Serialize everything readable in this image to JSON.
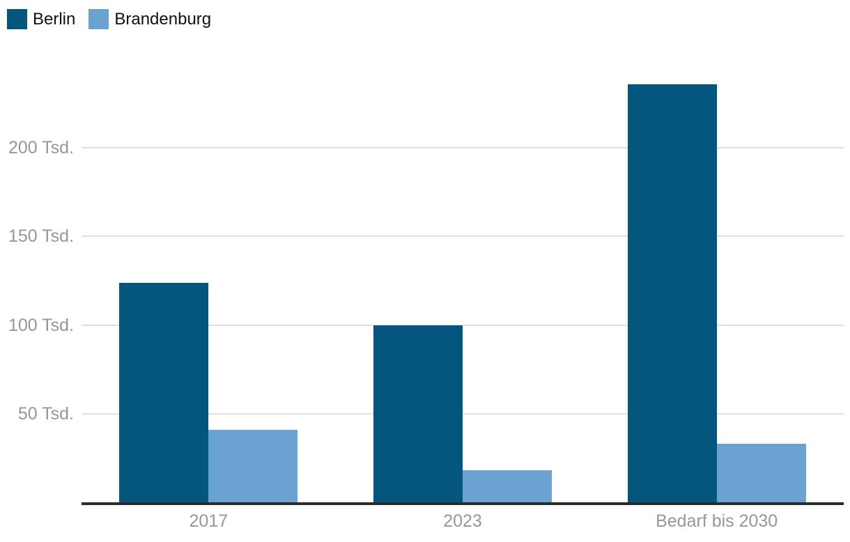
{
  "colors": {
    "berlin": "#04567e",
    "brandenburg": "#6aa2d2",
    "grid": "#e0e0e0",
    "axis_line": "#2b2b2b",
    "tick_text": "#969696",
    "legend_text": "#111111",
    "background": "#ffffff"
  },
  "legend": {
    "position": "top-left",
    "items": [
      {
        "label": "Berlin",
        "color_key": "berlin"
      },
      {
        "label": "Brandenburg",
        "color_key": "brandenburg"
      }
    ]
  },
  "chart_data": {
    "type": "bar",
    "grouped": true,
    "categories": [
      "2017",
      "2023",
      "Bedarf bis 2030"
    ],
    "series": [
      {
        "name": "Berlin",
        "color_key": "berlin",
        "values": [
          124,
          100,
          236
        ]
      },
      {
        "name": "Brandenburg",
        "color_key": "brandenburg",
        "values": [
          41,
          18,
          33
        ]
      }
    ],
    "value_unit": "Tsd.",
    "title": "",
    "xlabel": "",
    "ylabel": "",
    "y_ticks": [
      50,
      100,
      150,
      200
    ],
    "y_tick_labels": [
      "50 Tsd.",
      "100 Tsd.",
      "150 Tsd.",
      "200 Tsd."
    ],
    "ylim": [
      0,
      248
    ],
    "grid": true,
    "legend_position": "top-left"
  }
}
